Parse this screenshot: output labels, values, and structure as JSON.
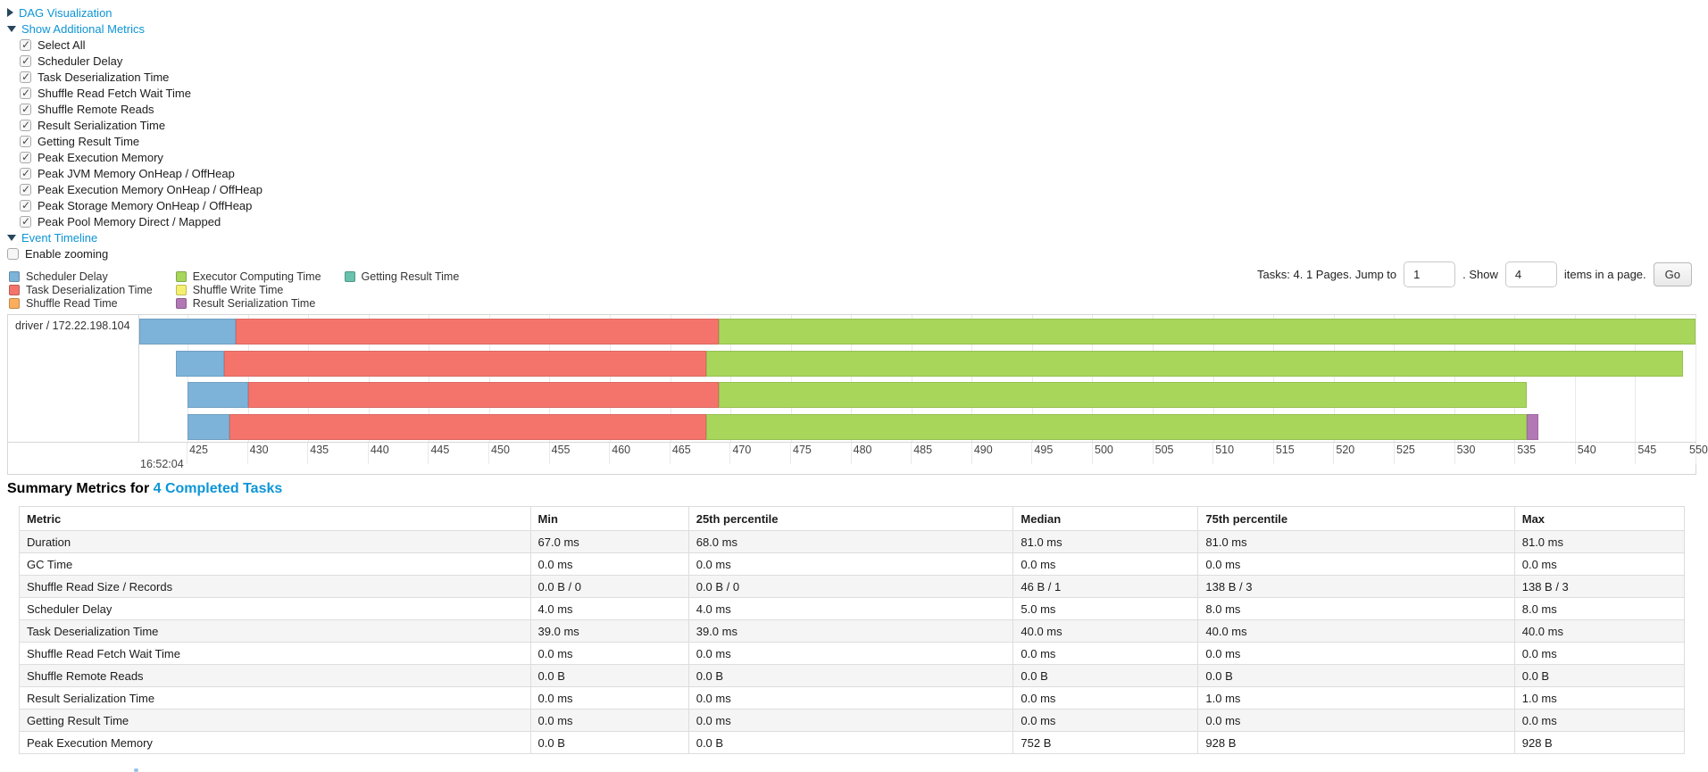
{
  "colors": {
    "scheduler_delay": "#7db3d8",
    "task_deserialization": "#f4746c",
    "shuffle_read": "#fcae5d",
    "executor_computing": "#a7d65b",
    "shuffle_write": "#f5ef70",
    "result_serialization": "#b278b5",
    "getting_result": "#68c2ad",
    "link_blue": "#0d95d6"
  },
  "controls": {
    "dag_label": "DAG Visualization",
    "metrics_toggle_label": "Show Additional Metrics",
    "metric_checkboxes": [
      {
        "label": "Select All",
        "checked": true
      },
      {
        "label": "Scheduler Delay",
        "checked": true
      },
      {
        "label": "Task Deserialization Time",
        "checked": true
      },
      {
        "label": "Shuffle Read Fetch Wait Time",
        "checked": true
      },
      {
        "label": "Shuffle Remote Reads",
        "checked": true
      },
      {
        "label": "Result Serialization Time",
        "checked": true
      },
      {
        "label": "Getting Result Time",
        "checked": true
      },
      {
        "label": "Peak Execution Memory",
        "checked": true
      },
      {
        "label": "Peak JVM Memory OnHeap / OffHeap",
        "checked": true
      },
      {
        "label": "Peak Execution Memory OnHeap / OffHeap",
        "checked": true
      },
      {
        "label": "Peak Storage Memory OnHeap / OffHeap",
        "checked": true
      },
      {
        "label": "Peak Pool Memory Direct / Mapped",
        "checked": true
      }
    ],
    "event_timeline_label": "Event Timeline",
    "enable_zooming": {
      "label": "Enable zooming",
      "checked": false
    }
  },
  "legend": [
    {
      "label": "Scheduler Delay",
      "color_key": "scheduler_delay"
    },
    {
      "label": "Task Deserialization Time",
      "color_key": "task_deserialization"
    },
    {
      "label": "Shuffle Read Time",
      "color_key": "shuffle_read"
    },
    {
      "label": "Executor Computing Time",
      "color_key": "executor_computing"
    },
    {
      "label": "Shuffle Write Time",
      "color_key": "shuffle_write"
    },
    {
      "label": "Result Serialization Time",
      "color_key": "result_serialization"
    },
    {
      "label": "Getting Result Time",
      "color_key": "getting_result"
    }
  ],
  "pagination": {
    "tasks_info": "Tasks: 4. 1 Pages. Jump to",
    "jump_value": "1",
    "show_label": ". Show",
    "show_value": "4",
    "items_label": "items in a page.",
    "go_label": "Go"
  },
  "chart_data": {
    "type": "timeline",
    "group_label": "driver / 172.22.198.104",
    "axis": {
      "range": [
        421,
        550
      ],
      "ticks": [
        425,
        430,
        435,
        440,
        445,
        450,
        455,
        460,
        465,
        470,
        475,
        480,
        485,
        490,
        495,
        500,
        505,
        510,
        515,
        520,
        525,
        530,
        535,
        540,
        545,
        550
      ],
      "time_label": "16:52:04"
    },
    "tasks": [
      {
        "segments": [
          {
            "type": "scheduler_delay",
            "start": 421,
            "end": 429
          },
          {
            "type": "task_deserialization",
            "start": 429,
            "end": 469
          },
          {
            "type": "executor_computing",
            "start": 469,
            "end": 550
          }
        ]
      },
      {
        "segments": [
          {
            "type": "scheduler_delay",
            "start": 424,
            "end": 428
          },
          {
            "type": "task_deserialization",
            "start": 428,
            "end": 468
          },
          {
            "type": "executor_computing",
            "start": 468,
            "end": 549
          }
        ]
      },
      {
        "segments": [
          {
            "type": "scheduler_delay",
            "start": 425,
            "end": 430
          },
          {
            "type": "task_deserialization",
            "start": 430,
            "end": 469
          },
          {
            "type": "executor_computing",
            "start": 469,
            "end": 536
          }
        ]
      },
      {
        "segments": [
          {
            "type": "scheduler_delay",
            "start": 425,
            "end": 428.5
          },
          {
            "type": "task_deserialization",
            "start": 428.5,
            "end": 468
          },
          {
            "type": "executor_computing",
            "start": 468,
            "end": 536
          },
          {
            "type": "result_serialization",
            "start": 536,
            "end": 537
          }
        ]
      }
    ]
  },
  "summary": {
    "title_prefix": "Summary Metrics for",
    "title_link": "4 Completed Tasks",
    "columns": [
      "Metric",
      "Min",
      "25th percentile",
      "Median",
      "75th percentile",
      "Max"
    ],
    "rows": [
      [
        "Duration",
        "67.0 ms",
        "68.0 ms",
        "81.0 ms",
        "81.0 ms",
        "81.0 ms"
      ],
      [
        "GC Time",
        "0.0 ms",
        "0.0 ms",
        "0.0 ms",
        "0.0 ms",
        "0.0 ms"
      ],
      [
        "Shuffle Read Size / Records",
        "0.0 B / 0",
        "0.0 B / 0",
        "46 B / 1",
        "138 B / 3",
        "138 B / 3"
      ],
      [
        "Scheduler Delay",
        "4.0 ms",
        "4.0 ms",
        "5.0 ms",
        "8.0 ms",
        "8.0 ms"
      ],
      [
        "Task Deserialization Time",
        "39.0 ms",
        "39.0 ms",
        "40.0 ms",
        "40.0 ms",
        "40.0 ms"
      ],
      [
        "Shuffle Read Fetch Wait Time",
        "0.0 ms",
        "0.0 ms",
        "0.0 ms",
        "0.0 ms",
        "0.0 ms"
      ],
      [
        "Shuffle Remote Reads",
        "0.0 B",
        "0.0 B",
        "0.0 B",
        "0.0 B",
        "0.0 B"
      ],
      [
        "Result Serialization Time",
        "0.0 ms",
        "0.0 ms",
        "0.0 ms",
        "1.0 ms",
        "1.0 ms"
      ],
      [
        "Getting Result Time",
        "0.0 ms",
        "0.0 ms",
        "0.0 ms",
        "0.0 ms",
        "0.0 ms"
      ],
      [
        "Peak Execution Memory",
        "0.0 B",
        "0.0 B",
        "752 B",
        "928 B",
        "928 B"
      ]
    ]
  }
}
